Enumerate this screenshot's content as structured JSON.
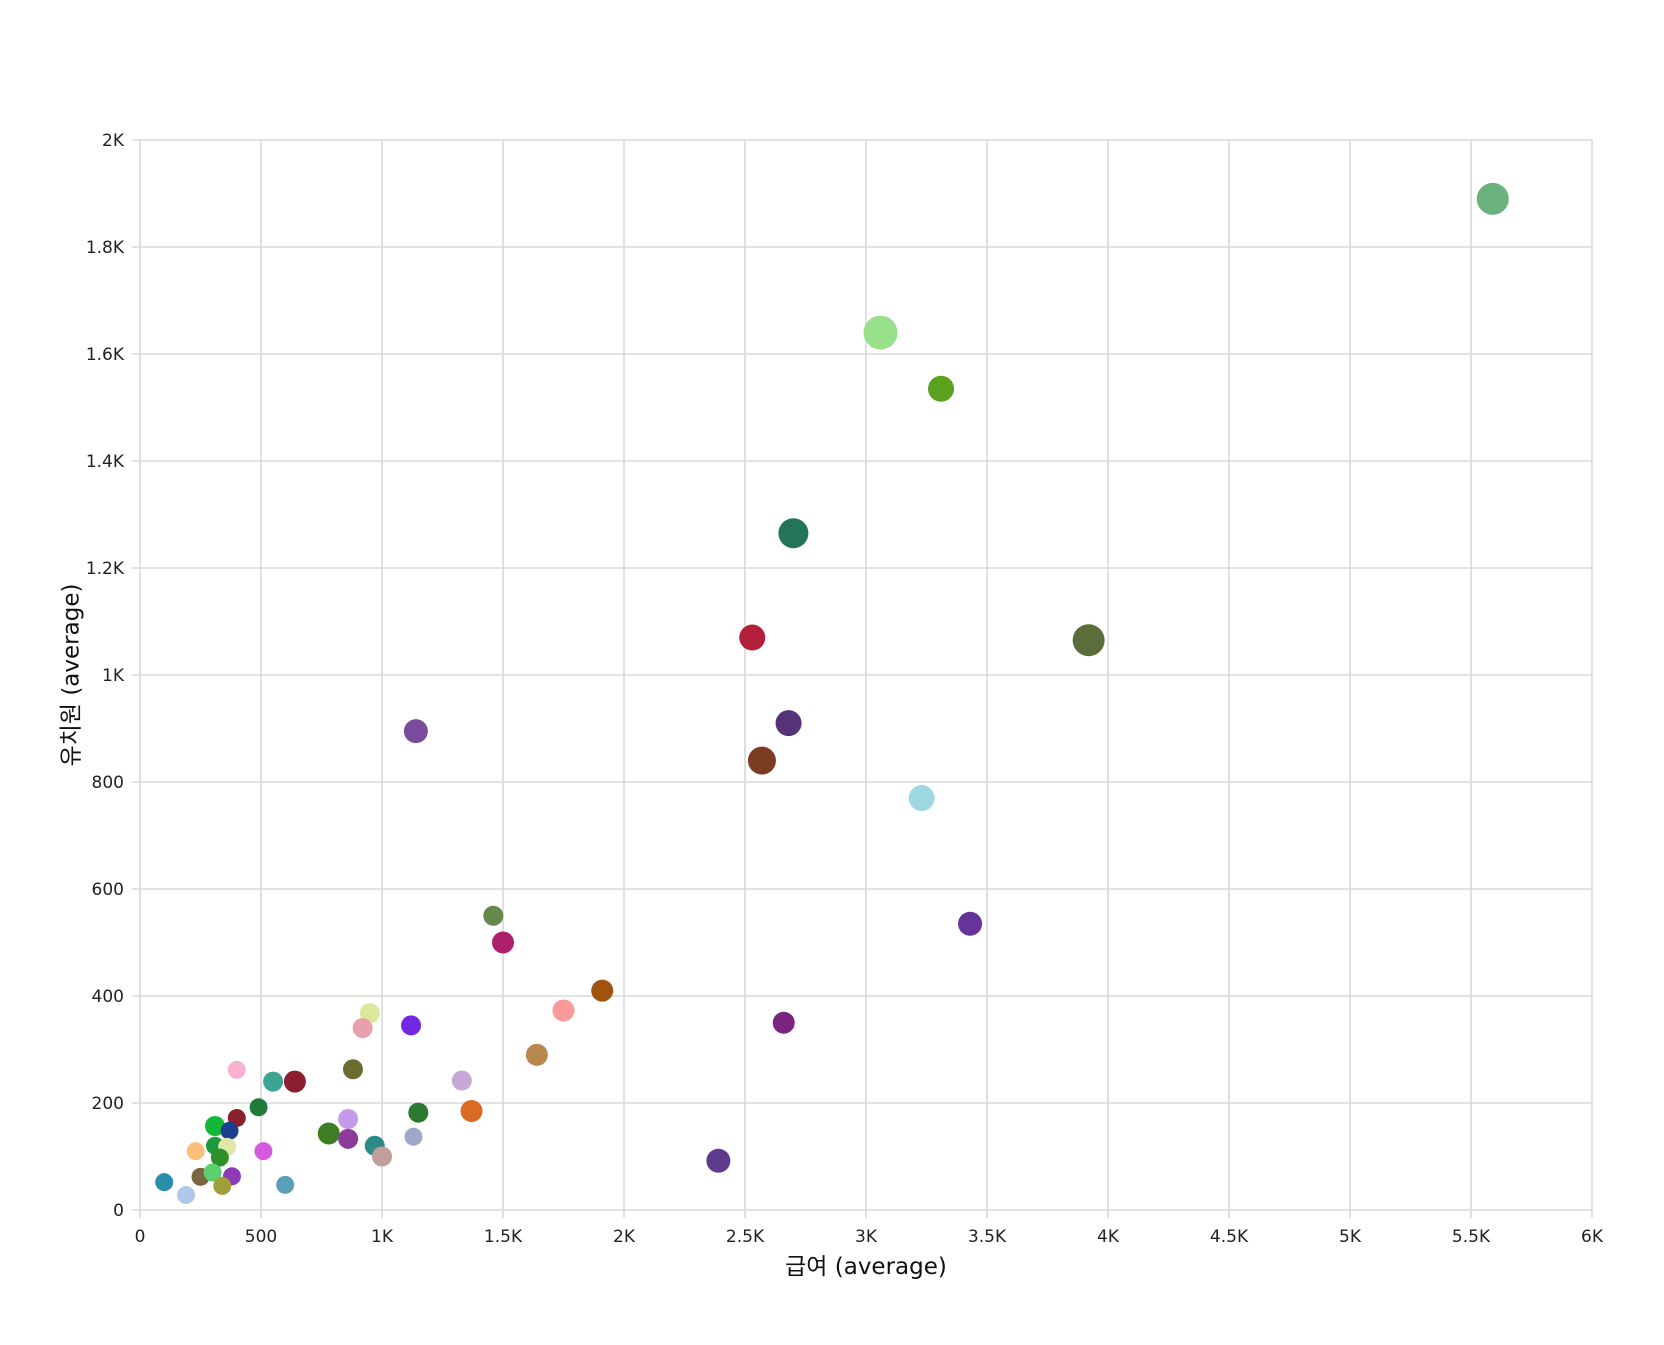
{
  "chart_data": {
    "type": "scatter",
    "xlabel": "급여 (average)",
    "ylabel": "유치원 (average)",
    "xlim": [
      0,
      6000
    ],
    "ylim": [
      0,
      2000
    ],
    "x_ticks": [
      0,
      500,
      1000,
      1500,
      2000,
      2500,
      3000,
      3500,
      4000,
      4500,
      5000,
      5500,
      6000
    ],
    "x_tick_labels": [
      "0",
      "500",
      "1K",
      "1.5K",
      "2K",
      "2.5K",
      "3K",
      "3.5K",
      "4K",
      "4.5K",
      "5K",
      "5.5K",
      "6K"
    ],
    "y_ticks": [
      0,
      200,
      400,
      600,
      800,
      1000,
      1200,
      1400,
      1600,
      1800,
      2000
    ],
    "y_tick_labels": [
      "0",
      "200",
      "400",
      "600",
      "800",
      "1K",
      "1.2K",
      "1.4K",
      "1.6K",
      "1.8K",
      "2K"
    ],
    "grid": true,
    "legend": "none",
    "points": [
      {
        "x": 5590,
        "y": 1890,
        "size": 16,
        "color": "#6bb17e"
      },
      {
        "x": 3060,
        "y": 1640,
        "size": 17,
        "color": "#98e08a"
      },
      {
        "x": 3310,
        "y": 1535,
        "size": 13,
        "color": "#5aa11e"
      },
      {
        "x": 2700,
        "y": 1265,
        "size": 15,
        "color": "#23755a"
      },
      {
        "x": 2530,
        "y": 1070,
        "size": 13,
        "color": "#b4203c"
      },
      {
        "x": 3920,
        "y": 1065,
        "size": 16,
        "color": "#5b6e3a"
      },
      {
        "x": 2680,
        "y": 910,
        "size": 13,
        "color": "#563277"
      },
      {
        "x": 2570,
        "y": 840,
        "size": 14,
        "color": "#7b3c24"
      },
      {
        "x": 1140,
        "y": 895,
        "size": 12,
        "color": "#7a4b9a"
      },
      {
        "x": 3230,
        "y": 770,
        "size": 13,
        "color": "#9ed8e3"
      },
      {
        "x": 3430,
        "y": 535,
        "size": 12,
        "color": "#65349b"
      },
      {
        "x": 1460,
        "y": 550,
        "size": 10,
        "color": "#65894a"
      },
      {
        "x": 1500,
        "y": 500,
        "size": 11,
        "color": "#ad1f6b"
      },
      {
        "x": 1910,
        "y": 410,
        "size": 11,
        "color": "#a0520e"
      },
      {
        "x": 1750,
        "y": 373,
        "size": 11,
        "color": "#fa9a9a"
      },
      {
        "x": 2660,
        "y": 350,
        "size": 11,
        "color": "#7b2380"
      },
      {
        "x": 950,
        "y": 368,
        "size": 10,
        "color": "#d9e89a"
      },
      {
        "x": 920,
        "y": 340,
        "size": 10,
        "color": "#e7a0ac"
      },
      {
        "x": 1120,
        "y": 345,
        "size": 10,
        "color": "#7327e3"
      },
      {
        "x": 1640,
        "y": 290,
        "size": 11,
        "color": "#b7874e"
      },
      {
        "x": 880,
        "y": 263,
        "size": 10,
        "color": "#6b6b30"
      },
      {
        "x": 400,
        "y": 262,
        "size": 9,
        "color": "#f7b3d1"
      },
      {
        "x": 550,
        "y": 240,
        "size": 10,
        "color": "#3fa394"
      },
      {
        "x": 640,
        "y": 240,
        "size": 11,
        "color": "#8c1f30"
      },
      {
        "x": 1330,
        "y": 242,
        "size": 10,
        "color": "#c5a9d6"
      },
      {
        "x": 490,
        "y": 192,
        "size": 9,
        "color": "#1f7b3a"
      },
      {
        "x": 1150,
        "y": 182,
        "size": 10,
        "color": "#2b7a30"
      },
      {
        "x": 1370,
        "y": 185,
        "size": 11,
        "color": "#d96b25"
      },
      {
        "x": 400,
        "y": 172,
        "size": 9,
        "color": "#8a1f2e"
      },
      {
        "x": 310,
        "y": 157,
        "size": 10,
        "color": "#14b837"
      },
      {
        "x": 370,
        "y": 148,
        "size": 9,
        "color": "#1a3f8f"
      },
      {
        "x": 860,
        "y": 170,
        "size": 10,
        "color": "#c39be8"
      },
      {
        "x": 780,
        "y": 143,
        "size": 11,
        "color": "#3f7d24"
      },
      {
        "x": 860,
        "y": 133,
        "size": 10,
        "color": "#8c3b9b"
      },
      {
        "x": 970,
        "y": 120,
        "size": 10,
        "color": "#2d8b87"
      },
      {
        "x": 1130,
        "y": 137,
        "size": 9,
        "color": "#9fa8cb"
      },
      {
        "x": 1000,
        "y": 100,
        "size": 10,
        "color": "#c29e9b"
      },
      {
        "x": 310,
        "y": 120,
        "size": 9,
        "color": "#1a9a3a"
      },
      {
        "x": 360,
        "y": 118,
        "size": 9,
        "color": "#e0e8a8"
      },
      {
        "x": 330,
        "y": 98,
        "size": 9,
        "color": "#2f8f2a"
      },
      {
        "x": 230,
        "y": 110,
        "size": 9,
        "color": "#fbbf7c"
      },
      {
        "x": 510,
        "y": 110,
        "size": 9,
        "color": "#d45be0"
      },
      {
        "x": 100,
        "y": 52,
        "size": 9,
        "color": "#2a8ea8"
      },
      {
        "x": 250,
        "y": 62,
        "size": 9,
        "color": "#7a6641"
      },
      {
        "x": 300,
        "y": 70,
        "size": 9,
        "color": "#5ad06e"
      },
      {
        "x": 380,
        "y": 63,
        "size": 9,
        "color": "#8e3ab8"
      },
      {
        "x": 340,
        "y": 45,
        "size": 9,
        "color": "#9fa03a"
      },
      {
        "x": 190,
        "y": 28,
        "size": 9,
        "color": "#aec8e8"
      },
      {
        "x": 600,
        "y": 47,
        "size": 9,
        "color": "#5a9fb8"
      },
      {
        "x": 2390,
        "y": 92,
        "size": 12,
        "color": "#5e3b8c"
      }
    ]
  }
}
